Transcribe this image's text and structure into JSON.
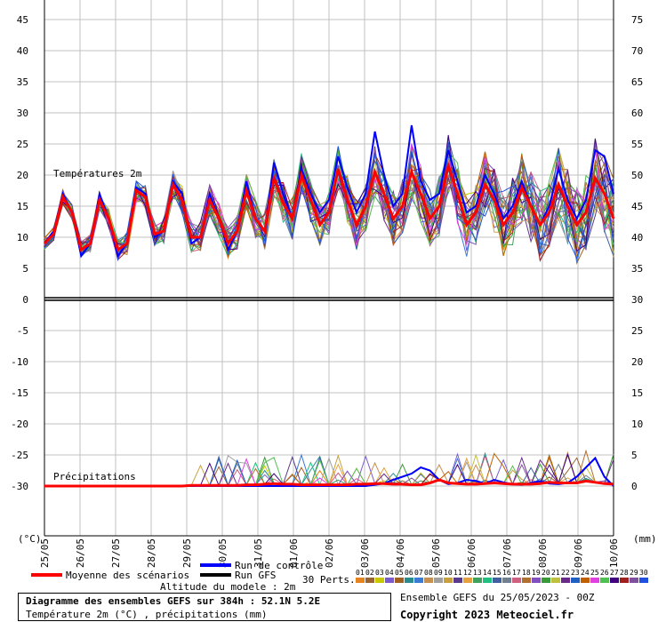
{
  "chart_data": {
    "type": "line",
    "temperature_axis_left": [
      "45",
      "40",
      "35",
      "30",
      "25",
      "20",
      "15",
      "10",
      "5",
      "0",
      "-5",
      "-10",
      "-15",
      "-20",
      "-25",
      "-30"
    ],
    "temperature_axis_right": [
      "75",
      "70",
      "65",
      "60",
      "55",
      "50",
      "45",
      "40",
      "35",
      "30",
      "25",
      "20",
      "15",
      "10",
      "5",
      "0"
    ],
    "ylim_left": [
      -30,
      45
    ],
    "x_dates": [
      "25/05",
      "26/05",
      "27/05",
      "28/05",
      "29/05",
      "30/05",
      "31/05",
      "01/06",
      "02/06",
      "03/06",
      "04/06",
      "05/06",
      "06/06",
      "07/06",
      "08/06",
      "09/06",
      "10/06"
    ],
    "left_unit": "(°C)",
    "right_unit": "(mm)",
    "section_temperature": "Températures 2m",
    "section_precip": "Précipitations",
    "mean_temperature": [
      9,
      10.5,
      16.5,
      14,
      8,
      9,
      16,
      13,
      8,
      9,
      17.5,
      16.5,
      10.5,
      11,
      18.5,
      16,
      10,
      10,
      16,
      13,
      9,
      11,
      17.5,
      13,
      11,
      19.5,
      15.5,
      13,
      20,
      16,
      12,
      14,
      21,
      16,
      12,
      15,
      20.5,
      17,
      13,
      15,
      20.5,
      17,
      13,
      15,
      21.5,
      17,
      12,
      14,
      18.5,
      16,
      12,
      14,
      18,
      15,
      12,
      14,
      18.5,
      15,
      12,
      14,
      19.5,
      17,
      13
    ],
    "control_temperature": [
      9,
      11,
      17,
      14,
      7,
      9,
      17,
      13,
      7,
      9,
      18,
      17,
      10,
      11,
      19,
      17,
      9,
      10,
      17,
      13,
      8,
      11,
      19,
      13,
      11,
      22,
      17,
      13,
      21,
      17,
      14,
      16,
      23,
      18,
      14,
      17,
      27,
      20,
      15,
      17,
      28,
      19,
      16,
      17,
      24,
      19,
      14,
      15,
      20,
      17,
      13,
      15,
      19,
      15,
      12,
      15,
      21,
      16,
      13,
      16,
      24,
      23,
      17
    ],
    "precip_mean_mm": [
      0,
      0,
      0,
      0,
      0,
      0,
      0,
      0,
      0,
      0,
      0,
      0,
      0,
      0,
      0,
      0,
      0.1,
      0.1,
      0.1,
      0.1,
      0.1,
      0.1,
      0.2,
      0.2,
      0.3,
      0.4,
      0.3,
      0.3,
      0.2,
      0.2,
      0.2,
      0.2,
      0.2,
      0.2,
      0.3,
      0.3,
      0.4,
      0.4,
      0.3,
      0.3,
      0.2,
      0.2,
      0.5,
      1,
      0.5,
      0.4,
      0.3,
      0.3,
      0.4,
      0.5,
      0.4,
      0.3,
      0.3,
      0.3,
      0.4,
      0.6,
      0.5,
      0.5,
      0.5,
      0.8,
      0.6,
      0.4,
      0.3
    ],
    "precip_control_mm": [
      0,
      0,
      0,
      0,
      0,
      0,
      0,
      0,
      0,
      0,
      0,
      0,
      0,
      0,
      0,
      0,
      0,
      0,
      0,
      0,
      0,
      0,
      0,
      0,
      0,
      0,
      0,
      0,
      0,
      0,
      0,
      0,
      0,
      0,
      0,
      0,
      0.2,
      0.4,
      1,
      1.5,
      2,
      3,
      2.5,
      1,
      0.3,
      0.5,
      1,
      0.8,
      0.4,
      1,
      0.6,
      0.3,
      0.2,
      0.5,
      0.8,
      0.4,
      0.3,
      0.5,
      1.5,
      3,
      4.5,
      1.5,
      0
    ],
    "perturbation_colors": [
      "#e6841f",
      "#996633",
      "#c8c800",
      "#7a5ccc",
      "#a06020",
      "#2a8c8c",
      "#3a7bd5",
      "#c89050",
      "#a0a0a0",
      "#c8a040",
      "#5a3a8c",
      "#e6a040",
      "#40a060",
      "#20c080",
      "#4060a0",
      "#708090",
      "#d06080",
      "#b07030",
      "#8050c0",
      "#3a9a3a",
      "#c0c040",
      "#6a2a8a",
      "#2060c0",
      "#c06000",
      "#e040e0",
      "#50c050",
      "#400080",
      "#a02020",
      "#8050a0",
      "#2050e0"
    ],
    "perturbation_labels": [
      "01",
      "02",
      "03",
      "04",
      "05",
      "06",
      "07",
      "08",
      "09",
      "10",
      "11",
      "12",
      "13",
      "14",
      "15",
      "16",
      "17",
      "18",
      "19",
      "20",
      "21",
      "22",
      "23",
      "24",
      "25",
      "26",
      "27",
      "28",
      "29",
      "30"
    ]
  },
  "legend": {
    "mean_label": "Moyenne des scénarios",
    "control_label": "Run de contrôle",
    "gfs_label": "Run GFS",
    "perts_label": "30 Perts.",
    "altitude_label": "Altitude du modele : 2m",
    "mean_color": "#ff0000",
    "control_color": "#0000ff",
    "gfs_color": "#000000"
  },
  "footer": {
    "title": "Diagramme des ensembles GEFS sur 384h : 52.1N 5.2E",
    "subtitle": "Température 2m (°C) , précipitations (mm)",
    "run": "Ensemble GEFS du 25/05/2023 - 00Z",
    "copyright": "Copyright 2023 Meteociel.fr"
  }
}
